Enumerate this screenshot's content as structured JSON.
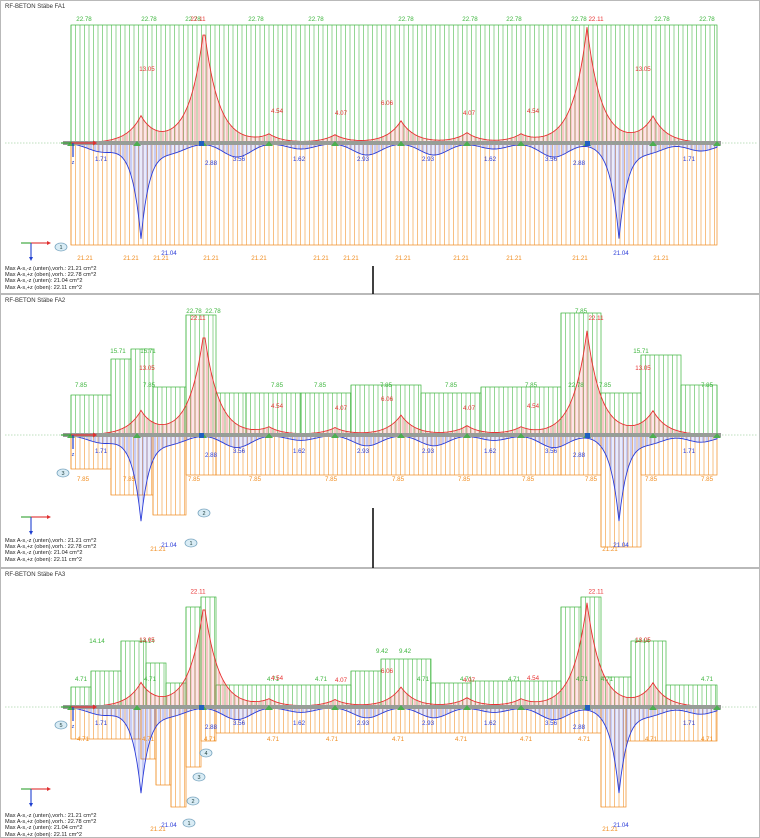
{
  "colors": {
    "top": "#3cb53c",
    "bottom": "#f08c1e",
    "moment_pos": "#e83030",
    "moment_neg": "#2b3cd8",
    "beam": "#9a9a9a",
    "support": "#4caf50",
    "node": "#2060c0",
    "axis_x": "#e03030",
    "axis_z": "#2040d0",
    "axis_y": "#30a030"
  },
  "icons": [
    "coordinate-axes-icon",
    "section-marker-icon",
    "flow-arrow-down-icon"
  ],
  "axis_labels": {
    "z": "z"
  },
  "panels": [
    {
      "title": "RF-BETON Stäbe FA1",
      "legend": [
        "Max A-s,-z (unten),vorh.: 21.21 cm^2",
        "Max A-s,+z (oben),vorh.: 22.78 cm^2",
        "Max A-s,-z (unten): 21.04 cm^2",
        "Max A-s,+z (oben): 22.11 cm^2"
      ],
      "markers": [
        "1"
      ],
      "top_labels": [
        "22.78",
        "22.78",
        "22.78",
        "22.78",
        "22.78",
        "22.78",
        "22.78",
        "22.78",
        "22.78",
        "22.78",
        "22.78"
      ],
      "bottom_labels": [
        "21.21",
        "21.21",
        "21.21",
        "21.21",
        "21.21",
        "21.21",
        "21.21",
        "21.21",
        "21.21",
        "21.21",
        "21.21",
        "21.21"
      ],
      "moment_pos_labels": [
        "13.05",
        "22.11",
        "4.54",
        "4.07",
        "6.06",
        "4.07",
        "4.54",
        "22.11",
        "13.05"
      ],
      "moment_neg_labels": [
        "1.71",
        "2.88",
        "3.56",
        "1.62",
        "2.93",
        "2.93",
        "1.62",
        "3.56",
        "2.88",
        "1.71"
      ],
      "min_labels": [
        "21.04",
        "21.04"
      ]
    },
    {
      "title": "RF-BETON Stäbe FA2",
      "legend": [
        "Max A-s,-z (unten),vorh.: 21.21 cm^2",
        "Max A-s,+z (oben),vorh.: 22.78 cm^2",
        "Max A-s,-z (unten): 21.04 cm^2",
        "Max A-s,+z (oben): 22.11 cm^2"
      ],
      "markers": [
        "3",
        "2",
        "1"
      ],
      "top_labels": [
        "15.71",
        "15.71",
        "7.85",
        "7.85",
        "22.78",
        "22.78",
        "7.85",
        "7.85",
        "7.85",
        "7.85",
        "7.85",
        "7.85",
        "22.78",
        "7.85",
        "15.71",
        "7.85"
      ],
      "bottom_labels": [
        "7.85",
        "7.85",
        "7.85",
        "7.85",
        "7.85",
        "7.85",
        "7.85",
        "7.85",
        "7.85",
        "7.85",
        "7.85",
        "21.21",
        "21.21"
      ],
      "moment_pos_labels": [
        "13.05",
        "22.11",
        "4.54",
        "4.07",
        "6.06",
        "4.07",
        "4.54",
        "22.11",
        "13.05"
      ],
      "moment_neg_labels": [
        "1.71",
        "2.88",
        "3.56",
        "1.62",
        "2.93",
        "2.93",
        "1.62",
        "3.56",
        "2.88",
        "1.71"
      ],
      "min_labels": [
        "21.04",
        "21.04"
      ]
    },
    {
      "title": "RF-BETON Stäbe FA3",
      "legend": [
        "Max A-s,-z (unten),vorh.: 21.21 cm^2",
        "Max A-s,+z (oben),vorh.: 22.78 cm^2",
        "Max A-s,-z (unten): 21.04 cm^2",
        "Max A-s,+z (oben): 22.11 cm^2"
      ],
      "markers": [
        "5",
        "4",
        "3",
        "2",
        "1"
      ],
      "top_labels": [
        "14.14",
        "14.14",
        "4.71",
        "4.71",
        "4.71",
        "4.71",
        "9.42",
        "9.42",
        "4.71",
        "4.71",
        "4.71",
        "4.71",
        "14.14",
        "4.71",
        "4.71"
      ],
      "bottom_labels": [
        "4.71",
        "4.71",
        "4.71",
        "4.71",
        "4.71",
        "4.71",
        "4.71",
        "4.71",
        "4.71",
        "4.71",
        "4.71",
        "21.21",
        "21.21"
      ],
      "moment_pos_labels": [
        "13.05",
        "22.11",
        "4.54",
        "4.07",
        "6.06",
        "4.07",
        "4.54",
        "22.11",
        "13.05"
      ],
      "moment_neg_labels": [
        "1.71",
        "2.88",
        "3.56",
        "1.62",
        "2.93",
        "2.93",
        "1.62",
        "3.56",
        "2.88",
        "1.71"
      ],
      "min_labels": [
        "21.04",
        "21.04"
      ]
    }
  ]
}
